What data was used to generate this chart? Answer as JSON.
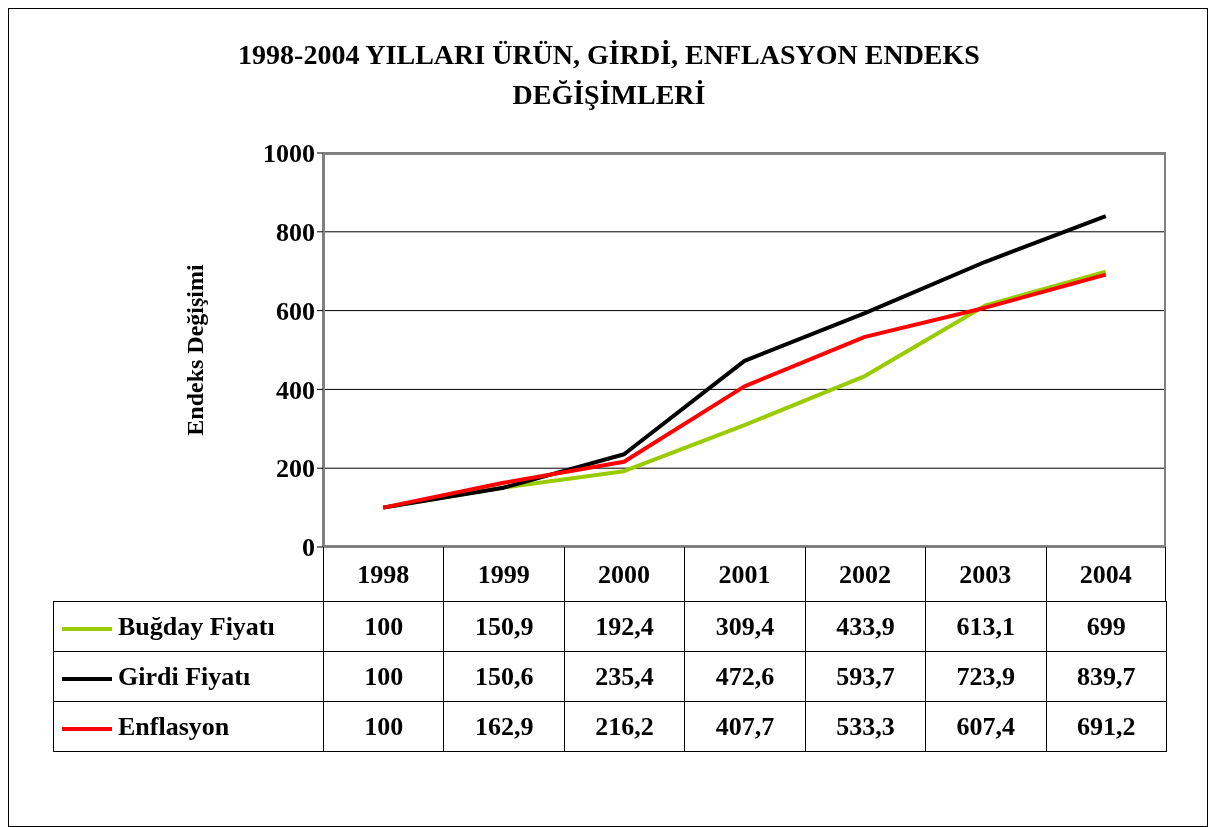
{
  "chart_data": {
    "type": "line",
    "title": "1998-2004 YILLARI ÜRÜN, GİRDİ, ENFLASYON ENDEKS DEĞİŞİMLERİ",
    "ylabel": "Endeks Değişimi",
    "categories": [
      "1998",
      "1999",
      "2000",
      "2001",
      "2002",
      "2003",
      "2004"
    ],
    "series": [
      {
        "name": "Buğday Fiyatı",
        "color": "#99cc00",
        "values": [
          100,
          150.9,
          192.4,
          309.4,
          433.9,
          613.1,
          699
        ],
        "value_labels": [
          "100",
          "150,9",
          "192,4",
          "309,4",
          "433,9",
          "613,1",
          "699"
        ]
      },
      {
        "name": "Girdi Fiyatı",
        "color": "#000000",
        "values": [
          100,
          150.6,
          235.4,
          472.6,
          593.7,
          723.9,
          839.7
        ],
        "value_labels": [
          "100",
          "150,6",
          "235,4",
          "472,6",
          "593,7",
          "723,9",
          "839,7"
        ]
      },
      {
        "name": "Enflasyon",
        "color": "#ff0000",
        "values": [
          100,
          162.9,
          216.2,
          407.7,
          533.3,
          607.4,
          691.2
        ],
        "value_labels": [
          "100",
          "162,9",
          "216,2",
          "407,7",
          "533,3",
          "607,4",
          "691,2"
        ]
      }
    ],
    "ylim": [
      0,
      1000
    ],
    "yticks": [
      0,
      200,
      400,
      600,
      800,
      1000
    ],
    "grid": "y",
    "legend": "bottom",
    "marker": "none",
    "line_style": "solid"
  }
}
